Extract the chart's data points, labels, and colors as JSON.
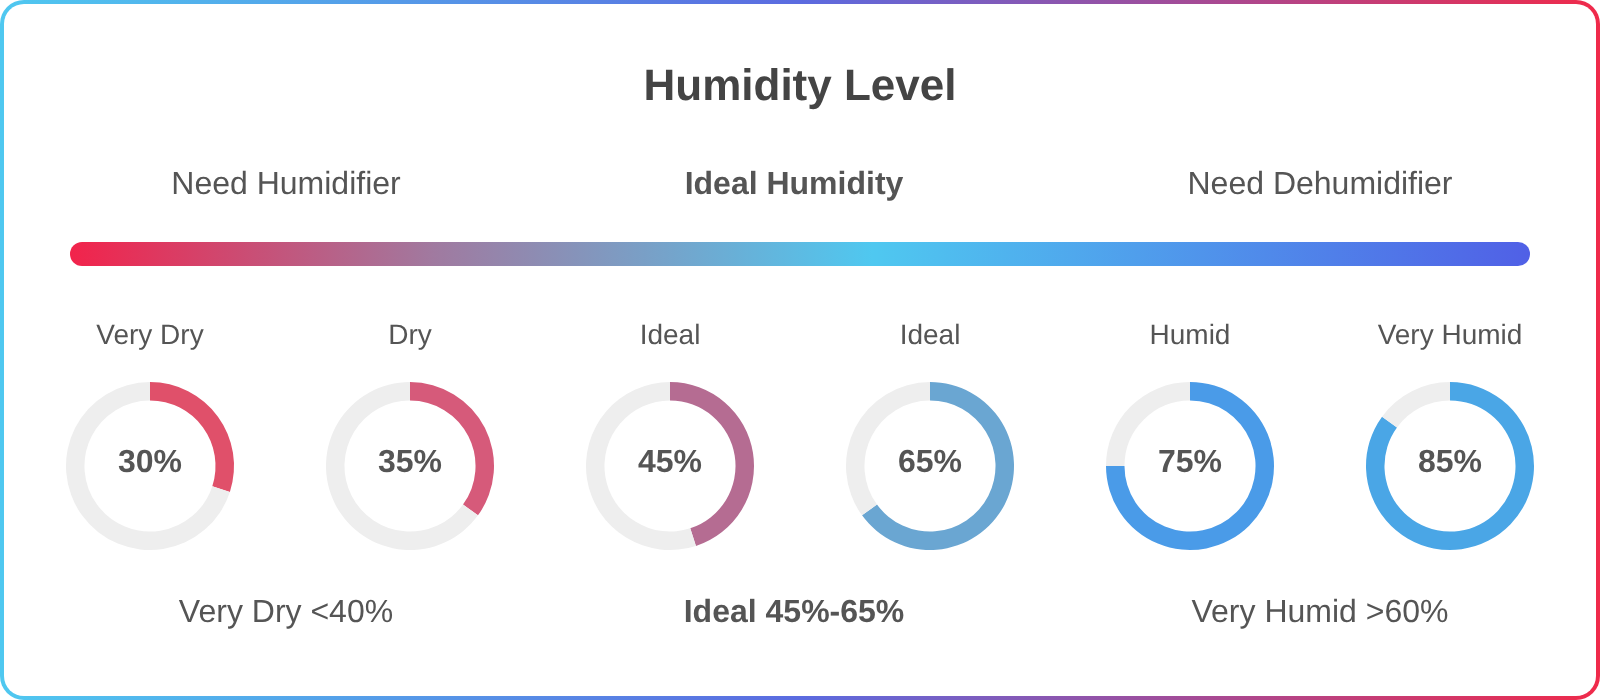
{
  "chart_data": [
    {
      "type": "other",
      "title": "Humidity Level",
      "annotations": [
        "Need Humidifier",
        "Ideal Humidity",
        "Need Dehumidifier",
        "Very Dry <40%",
        "Ideal 45%-65%",
        "Very Humid >60%"
      ]
    },
    {
      "type": "donut",
      "title": "Very Dry",
      "categories": [
        null,
        null
      ],
      "values": [
        30,
        70
      ],
      "colors": [
        "#e0506a",
        "#eeeeee"
      ],
      "value_labels": [
        "30%",
        null
      ]
    },
    {
      "type": "donut",
      "title": "Dry",
      "categories": [
        null,
        null
      ],
      "values": [
        35,
        65
      ],
      "colors": [
        "#d65a7a",
        "#eeeeee"
      ],
      "value_labels": [
        "35%",
        null
      ]
    },
    {
      "type": "donut",
      "title": "Ideal",
      "categories": [
        null,
        null
      ],
      "values": [
        45,
        55
      ],
      "colors": [
        "#b56c92",
        "#eeeeee"
      ],
      "value_labels": [
        "45%",
        null
      ]
    },
    {
      "type": "donut",
      "title": "Ideal",
      "categories": [
        null,
        null
      ],
      "values": [
        65,
        35
      ],
      "colors": [
        "#6aa6d2",
        "#eeeeee"
      ],
      "value_labels": [
        "65%",
        null
      ]
    },
    {
      "type": "donut",
      "title": "Humid",
      "categories": [
        null,
        null
      ],
      "values": [
        75,
        25
      ],
      "colors": [
        "#4a9be8",
        "#eeeeee"
      ],
      "value_labels": [
        "75%",
        null
      ]
    },
    {
      "type": "donut",
      "title": "Very Humid",
      "categories": [
        null,
        null
      ],
      "values": [
        85,
        15
      ],
      "colors": [
        "#4aa6e6",
        "#eeeeee"
      ],
      "value_labels": [
        "85%",
        null
      ]
    }
  ]
}
